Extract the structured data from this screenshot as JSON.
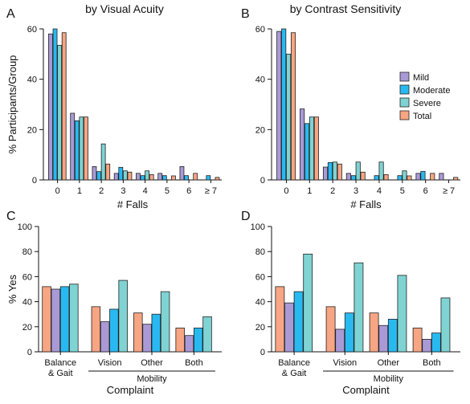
{
  "colors": {
    "Mild": "#a99ad6",
    "Moderate": "#29b9f1",
    "Severe": "#7fd3d3",
    "Total": "#f7a583",
    "edge": "#222222"
  },
  "legend": [
    "Mild",
    "Moderate",
    "Severe",
    "Total"
  ],
  "chart_data": [
    {
      "id": "A",
      "type": "bar",
      "title": "by Visual Acuity",
      "xlabel": "# Falls",
      "ylabel": "% Participants/Group",
      "ylim": [
        0,
        60
      ],
      "yticks": [
        0,
        20,
        40,
        60
      ],
      "categories": [
        "0",
        "1",
        "2",
        "3",
        "4",
        "5",
        "6",
        "≥ 7"
      ],
      "series": [
        {
          "name": "Mild",
          "values": [
            58,
            26.5,
            5.3,
            2.6,
            2.6,
            2.6,
            5.3,
            0
          ]
        },
        {
          "name": "Moderate",
          "values": [
            60,
            23.5,
            3.3,
            5,
            1.7,
            1.7,
            1.7,
            1.7
          ]
        },
        {
          "name": "Severe",
          "values": [
            53.5,
            25,
            14.3,
            3.6,
            3.6,
            0,
            0,
            0
          ]
        },
        {
          "name": "Total",
          "values": [
            58.5,
            25,
            6.3,
            3.1,
            2.1,
            1.6,
            2.6,
            1
          ]
        }
      ]
    },
    {
      "id": "B",
      "type": "bar",
      "title": "by Contrast Sensitivity",
      "xlabel": "# Falls",
      "ylabel": "",
      "ylim": [
        0,
        60
      ],
      "yticks": [
        0,
        20,
        40,
        60
      ],
      "categories": [
        "0",
        "1",
        "2",
        "3",
        "4",
        "5",
        "6",
        "≥ 7"
      ],
      "series": [
        {
          "name": "Mild",
          "values": [
            59,
            28.2,
            5.1,
            2.6,
            0,
            0,
            2.6,
            2.6
          ]
        },
        {
          "name": "Moderate",
          "values": [
            60,
            22.4,
            6.9,
            1.7,
            1.7,
            1.7,
            3.4,
            0
          ]
        },
        {
          "name": "Severe",
          "values": [
            50,
            25,
            7.1,
            7.1,
            7.1,
            3.6,
            0,
            0
          ]
        },
        {
          "name": "Total",
          "values": [
            58.5,
            25,
            6.3,
            3.1,
            2.1,
            1.6,
            2.6,
            1
          ]
        }
      ]
    },
    {
      "id": "C",
      "type": "bar",
      "title": "",
      "xlabel": "Complaint",
      "ylabel": "% Yes",
      "ylim": [
        0,
        100
      ],
      "yticks": [
        0,
        20,
        40,
        60,
        80,
        100
      ],
      "categories": [
        "Balance & Gait",
        "Vision",
        "Other",
        "Both"
      ],
      "category_lines": [
        [
          "Balance",
          "& Gait"
        ],
        [
          "Vision"
        ],
        [
          "Other"
        ],
        [
          "Both"
        ]
      ],
      "group_label": "Mobility",
      "series": [
        {
          "name": "Total",
          "values": [
            52,
            36,
            31,
            19
          ]
        },
        {
          "name": "Mild",
          "values": [
            50,
            24,
            22,
            13
          ]
        },
        {
          "name": "Moderate",
          "values": [
            52,
            34,
            30,
            19
          ]
        },
        {
          "name": "Severe",
          "values": [
            54,
            57,
            48,
            28
          ]
        }
      ]
    },
    {
      "id": "D",
      "type": "bar",
      "title": "",
      "xlabel": "Complaint",
      "ylabel": "",
      "ylim": [
        0,
        100
      ],
      "yticks": [
        0,
        20,
        40,
        60,
        80,
        100
      ],
      "categories": [
        "Balance & Gait",
        "Vision",
        "Other",
        "Both"
      ],
      "category_lines": [
        [
          "Balance",
          "& Gait"
        ],
        [
          "Vision"
        ],
        [
          "Other"
        ],
        [
          "Both"
        ]
      ],
      "group_label": "Mobility",
      "series": [
        {
          "name": "Total",
          "values": [
            52,
            36,
            31,
            19
          ]
        },
        {
          "name": "Mild",
          "values": [
            39,
            18,
            21,
            10
          ]
        },
        {
          "name": "Moderate",
          "values": [
            48,
            31,
            26,
            15
          ]
        },
        {
          "name": "Severe",
          "values": [
            78,
            71,
            61,
            43
          ]
        }
      ]
    }
  ]
}
